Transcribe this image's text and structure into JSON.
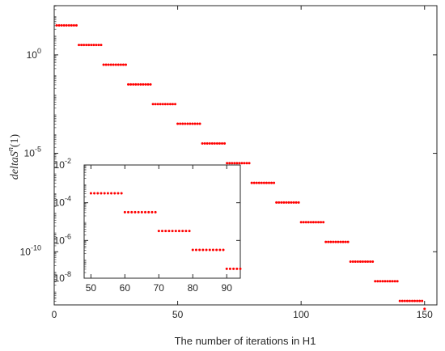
{
  "chart_data": [
    {
      "type": "scatter",
      "xlabel": "The number of iterations in H1",
      "ylabel": {
        "main": "deltaS",
        "sup": "n",
        "suffix": "(1)"
      },
      "xlim": [
        0,
        155
      ],
      "ylim_log10": [
        -12.7,
        2.5
      ],
      "yscale": "log",
      "grid": false,
      "x_ticks": [
        "0",
        "50",
        "100",
        "150"
      ],
      "x_tick_values": [
        0,
        50,
        100,
        150
      ],
      "y_ticks": [
        {
          "base": "10",
          "exp": "0",
          "log10": 0
        },
        {
          "base": "10",
          "exp": "-5",
          "log10": -5
        },
        {
          "base": "10",
          "exp": "-10",
          "log10": -10
        }
      ],
      "marker_color": "#ff0000",
      "series": [
        {
          "values": [
            {
              "x_start": 1,
              "x_end": 9,
              "log10": 1.5
            },
            {
              "x_start": 10,
              "x_end": 19,
              "log10": 0.5
            },
            {
              "x_start": 20,
              "x_end": 29,
              "log10": -0.5
            },
            {
              "x_start": 30,
              "x_end": 39,
              "log10": -1.5
            },
            {
              "x_start": 40,
              "x_end": 49,
              "log10": -2.5
            },
            {
              "x_start": 50,
              "x_end": 59,
              "log10": -3.5
            },
            {
              "x_start": 60,
              "x_end": 69,
              "log10": -4.5
            },
            {
              "x_start": 70,
              "x_end": 79,
              "log10": -5.5
            },
            {
              "x_start": 80,
              "x_end": 89,
              "log10": -6.5
            },
            {
              "x_start": 90,
              "x_end": 99,
              "log10": -7.5
            },
            {
              "x_start": 100,
              "x_end": 109,
              "log10": -8.5
            },
            {
              "x_start": 110,
              "x_end": 119,
              "log10": -9.5
            },
            {
              "x_start": 120,
              "x_end": 129,
              "log10": -10.5
            },
            {
              "x_start": 130,
              "x_end": 139,
              "log10": -11.5
            },
            {
              "x_start": 140,
              "x_end": 149,
              "log10": -12.5
            },
            {
              "x_start": 150,
              "x_end": 150,
              "log10": -12.9
            }
          ]
        }
      ]
    },
    {
      "type": "scatter",
      "role": "inset",
      "xlim": [
        48,
        94
      ],
      "ylim_log10": [
        -8,
        -2
      ],
      "yscale": "log",
      "x_ticks": [
        "50",
        "60",
        "70",
        "80",
        "90"
      ],
      "x_tick_values": [
        50,
        60,
        70,
        80,
        90
      ],
      "y_ticks": [
        {
          "base": "10",
          "exp": "-2",
          "log10": -2
        },
        {
          "base": "10",
          "exp": "-4",
          "log10": -4
        },
        {
          "base": "10",
          "exp": "-6",
          "log10": -6
        },
        {
          "base": "10",
          "exp": "-8",
          "log10": -8
        }
      ],
      "marker_color": "#ff0000",
      "series": [
        {
          "values": [
            {
              "x_start": 50,
              "x_end": 59,
              "log10": -3.5
            },
            {
              "x_start": 60,
              "x_end": 69,
              "log10": -4.5
            },
            {
              "x_start": 70,
              "x_end": 79,
              "log10": -5.5
            },
            {
              "x_start": 80,
              "x_end": 89,
              "log10": -6.5
            },
            {
              "x_start": 90,
              "x_end": 94,
              "log10": -7.5
            }
          ]
        }
      ]
    }
  ]
}
